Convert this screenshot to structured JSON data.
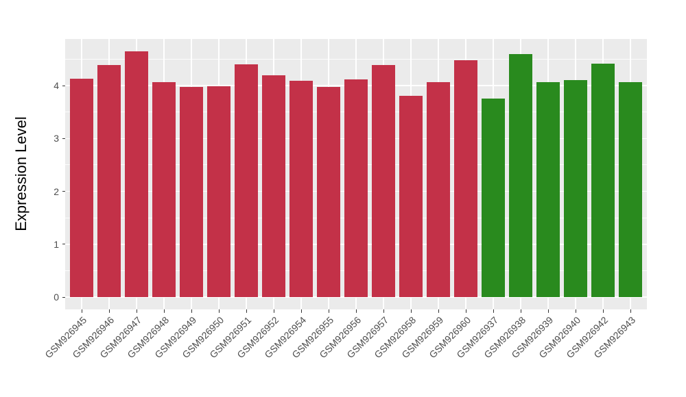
{
  "figure": {
    "background": "#FFFFFF",
    "panel_background": "#EBEBEB",
    "gridline_color": "#FFFFFF",
    "tick_color": "#333333",
    "axis_text_color": "#4D4D4D",
    "axis_title_color": "#000000"
  },
  "chart_data": {
    "type": "bar",
    "title": "",
    "xlabel": "",
    "ylabel": "Expression Level",
    "ylim": [
      -0.23,
      4.88
    ],
    "y_major_ticks": [
      0,
      1,
      2,
      3,
      4
    ],
    "y_minor_ticks": [
      0.5,
      1.5,
      2.5,
      3.5,
      4.5
    ],
    "grid": true,
    "legend_position": "none",
    "x_tick_angle": 45,
    "categories": [
      "GSM926945",
      "GSM926946",
      "GSM926947",
      "GSM926948",
      "GSM926949",
      "GSM926950",
      "GSM926951",
      "GSM926952",
      "GSM926954",
      "GSM926955",
      "GSM926956",
      "GSM926957",
      "GSM926958",
      "GSM926959",
      "GSM926960",
      "GSM926937",
      "GSM926938",
      "GSM926939",
      "GSM926940",
      "GSM926942",
      "GSM926943"
    ],
    "values": [
      4.13,
      4.39,
      4.65,
      4.06,
      3.98,
      3.99,
      4.4,
      4.19,
      4.09,
      3.97,
      4.12,
      4.39,
      3.8,
      4.06,
      4.48,
      3.76,
      4.6,
      4.06,
      4.1,
      4.42,
      4.06
    ],
    "bar_groups": [
      "red",
      "red",
      "red",
      "red",
      "red",
      "red",
      "red",
      "red",
      "red",
      "red",
      "red",
      "red",
      "red",
      "red",
      "red",
      "green",
      "green",
      "green",
      "green",
      "green",
      "green"
    ],
    "palette": {
      "red": "#C33148",
      "green": "#298A1E"
    }
  }
}
